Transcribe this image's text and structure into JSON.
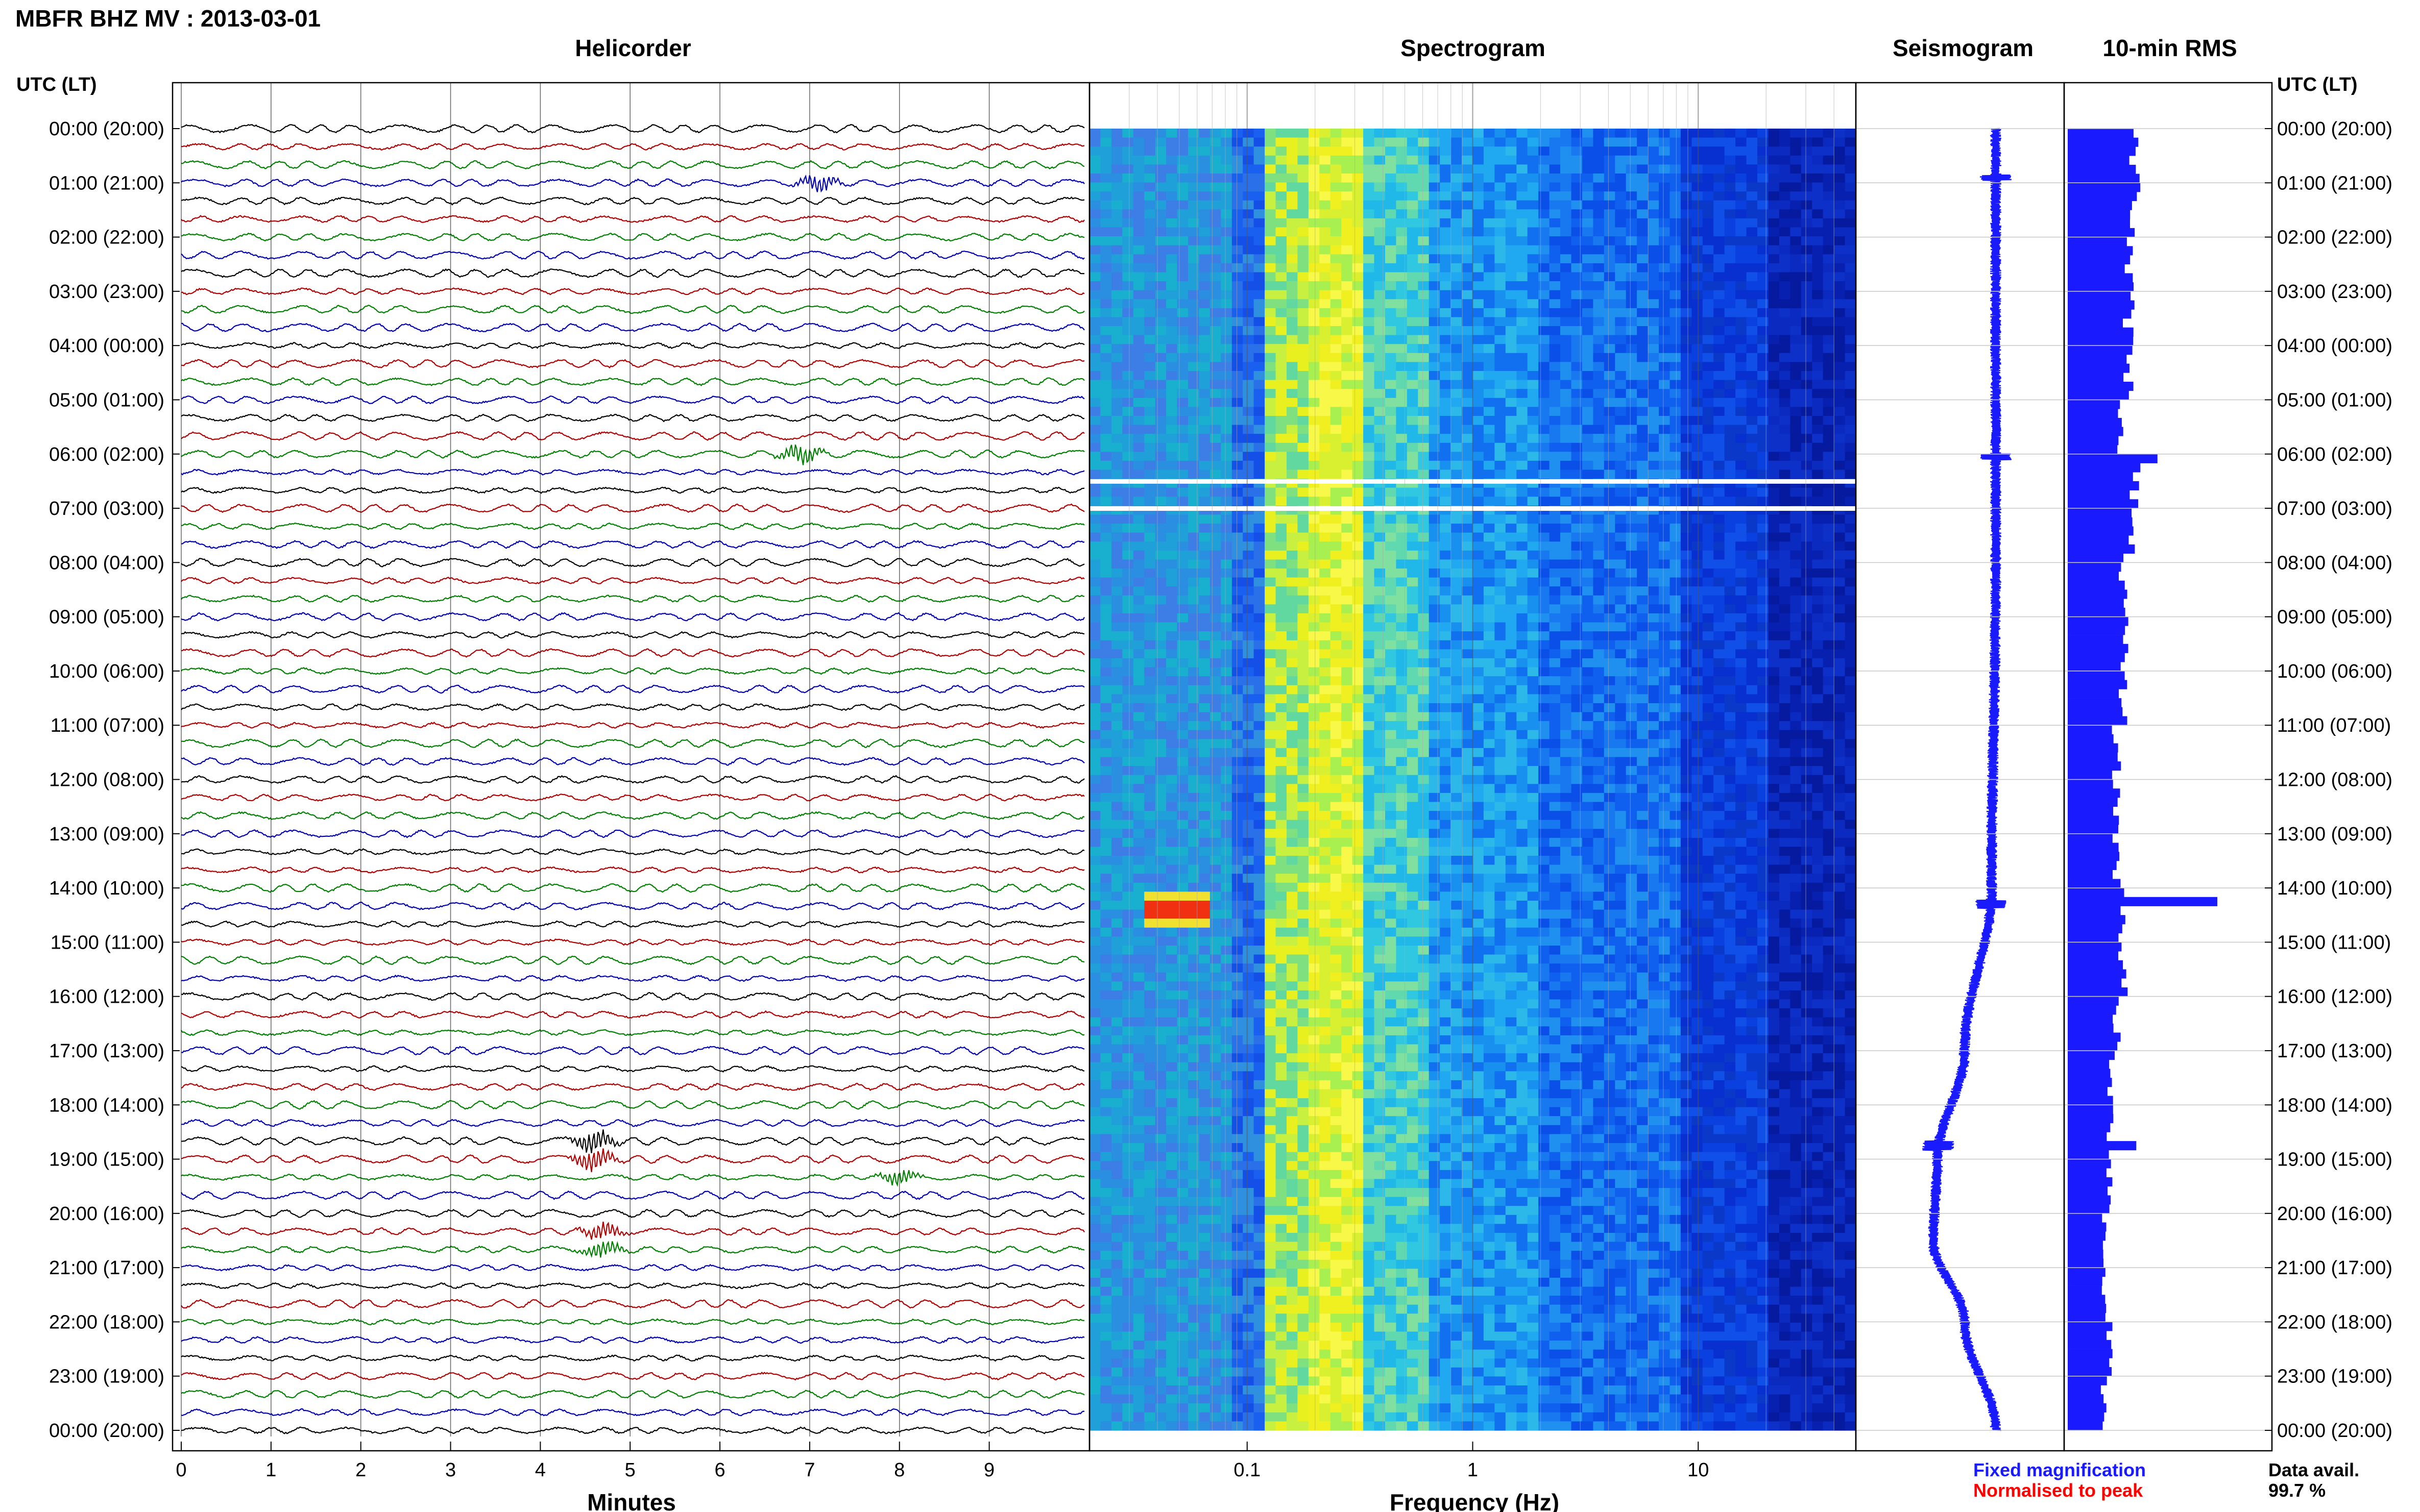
{
  "title": "MBFR BHZ MV : 2013-03-01",
  "utc_header_left": "UTC (LT)",
  "utc_header_right": "UTC (LT)",
  "panels": {
    "helicorder": "Helicorder",
    "spectrogram": "Spectrogram",
    "seismogram": "Seismogram",
    "rms": "10-min RMS"
  },
  "time_labels": [
    "00:00 (20:00)",
    "01:00 (21:00)",
    "02:00 (22:00)",
    "03:00 (23:00)",
    "04:00 (00:00)",
    "05:00 (01:00)",
    "06:00 (02:00)",
    "07:00 (03:00)",
    "08:00 (04:00)",
    "09:00 (05:00)",
    "10:00 (06:00)",
    "11:00 (07:00)",
    "12:00 (08:00)",
    "13:00 (09:00)",
    "14:00 (10:00)",
    "15:00 (11:00)",
    "16:00 (12:00)",
    "17:00 (13:00)",
    "18:00 (14:00)",
    "19:00 (15:00)",
    "20:00 (16:00)",
    "21:00 (17:00)",
    "22:00 (18:00)",
    "23:00 (19:00)",
    "00:00 (20:00)"
  ],
  "legend": {
    "fixed": "Fixed magnification",
    "fixed_color": "#1a1aff",
    "normalised": "Normalised to peak",
    "normalised_color": "#ff0000",
    "avail_label": "Data avail.",
    "avail_value": "99.7 %"
  },
  "chart_data": [
    {
      "type": "line",
      "panel": "helicorder",
      "xlabel": "Minutes",
      "x_ticks": [
        "0",
        "1",
        "2",
        "3",
        "4",
        "5",
        "6",
        "7",
        "8",
        "9"
      ],
      "xlim": [
        0,
        10
      ],
      "ylim_hours": [
        0,
        24
      ],
      "trace_colors": [
        "#000000",
        "#b00000",
        "#008000",
        "#0000b0"
      ],
      "events": [
        {
          "hour": 0.9,
          "minute": 7.1,
          "amplitude": 3.0
        },
        {
          "hour": 6.0,
          "minute": 6.9,
          "amplitude": 3.5
        },
        {
          "hour": 18.8,
          "minute": 4.6,
          "amplitude": 4.0
        },
        {
          "hour": 19.3,
          "minute": 8.0,
          "amplitude": 2.5
        },
        {
          "hour": 20.5,
          "minute": 4.7,
          "amplitude": 3.0
        }
      ]
    },
    {
      "type": "heatmap",
      "panel": "spectrogram",
      "xlabel": "Frequency (Hz)",
      "x_scale": "log",
      "x_ticks": [
        "0.1",
        "1",
        "10"
      ],
      "xlim": [
        0.02,
        50
      ],
      "ylim_hours": [
        0,
        24
      ],
      "data_gaps_hours": [
        6.5,
        7.0
      ],
      "features": [
        {
          "hour_range": [
            14.0,
            14.8
          ],
          "freq_range": [
            0.035,
            0.07
          ],
          "level": "high"
        }
      ]
    },
    {
      "type": "line",
      "panel": "seismogram",
      "ylim_hours": [
        0,
        24
      ],
      "color": "#1a1aff",
      "offset_profile": [
        {
          "hour": 0,
          "offset": 0.0
        },
        {
          "hour": 8,
          "offset": 0.0
        },
        {
          "hour": 14,
          "offset": -0.02
        },
        {
          "hour": 17,
          "offset": -0.15
        },
        {
          "hour": 19,
          "offset": -0.28
        },
        {
          "hour": 20.5,
          "offset": -0.3
        },
        {
          "hour": 22,
          "offset": -0.15
        },
        {
          "hour": 24,
          "offset": 0.0
        }
      ]
    },
    {
      "type": "bar",
      "panel": "rms",
      "orientation": "horizontal",
      "color": "#1a1aff",
      "bin_minutes": 10,
      "ylim_hours": [
        0,
        24
      ],
      "values_hourly_pattern": [
        0.55,
        0.55,
        0.5,
        0.5,
        0.5,
        0.45,
        0.55,
        0.5,
        0.45,
        0.45,
        0.45,
        0.4,
        0.4,
        0.4,
        0.45,
        0.45,
        0.4,
        0.35,
        0.35,
        0.35,
        0.3,
        0.3,
        0.35,
        0.3,
        0.3
      ],
      "peaks": [
        {
          "hour": 6.05,
          "value": 0.72
        },
        {
          "hour": 14.3,
          "value": 1.2
        },
        {
          "hour": 18.75,
          "value": 0.55
        }
      ]
    }
  ]
}
